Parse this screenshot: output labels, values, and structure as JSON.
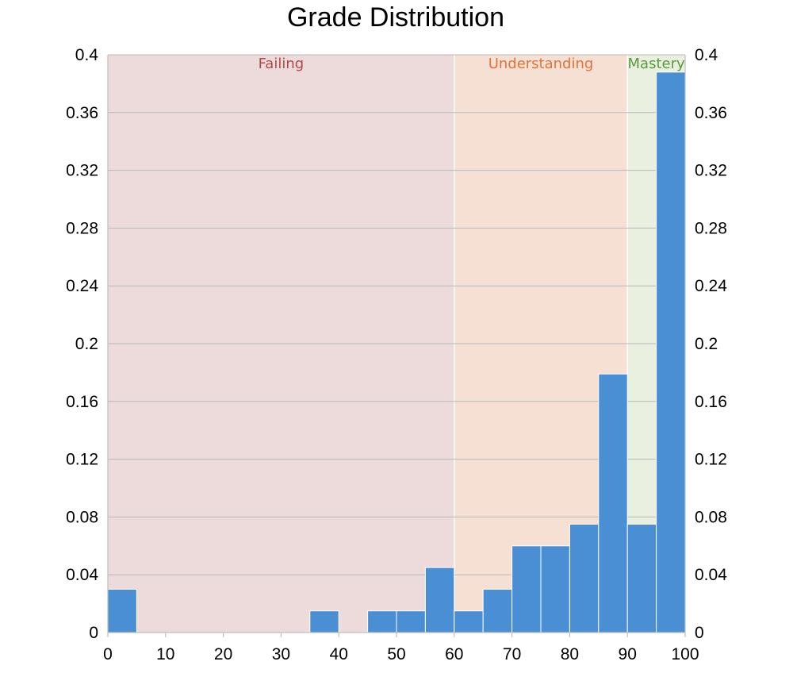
{
  "chart_data": {
    "type": "bar",
    "title": "Grade Distribution",
    "xlabel": "",
    "ylabel": "",
    "xlim": [
      0,
      100
    ],
    "ylim": [
      0,
      0.4
    ],
    "x_ticks": [
      "0",
      "10",
      "20",
      "30",
      "40",
      "50",
      "60",
      "70",
      "80",
      "90",
      "100"
    ],
    "y_ticks": [
      "0",
      "0.04",
      "0.08",
      "0.12",
      "0.16",
      "0.2",
      "0.24",
      "0.28",
      "0.32",
      "0.36",
      "0.4"
    ],
    "grid": true,
    "bin_width": 5,
    "bins": [
      {
        "start": 0,
        "end": 5,
        "value": 0.03
      },
      {
        "start": 5,
        "end": 10,
        "value": 0
      },
      {
        "start": 10,
        "end": 15,
        "value": 0
      },
      {
        "start": 15,
        "end": 20,
        "value": 0
      },
      {
        "start": 20,
        "end": 25,
        "value": 0
      },
      {
        "start": 25,
        "end": 30,
        "value": 0
      },
      {
        "start": 30,
        "end": 35,
        "value": 0
      },
      {
        "start": 35,
        "end": 40,
        "value": 0.015
      },
      {
        "start": 40,
        "end": 45,
        "value": 0
      },
      {
        "start": 45,
        "end": 50,
        "value": 0.015
      },
      {
        "start": 50,
        "end": 55,
        "value": 0.015
      },
      {
        "start": 55,
        "end": 60,
        "value": 0.045
      },
      {
        "start": 60,
        "end": 65,
        "value": 0.015
      },
      {
        "start": 65,
        "end": 70,
        "value": 0.03
      },
      {
        "start": 70,
        "end": 75,
        "value": 0.06
      },
      {
        "start": 75,
        "end": 80,
        "value": 0.06
      },
      {
        "start": 80,
        "end": 85,
        "value": 0.075
      },
      {
        "start": 85,
        "end": 90,
        "value": 0.179
      },
      {
        "start": 90,
        "end": 95,
        "value": 0.075
      },
      {
        "start": 95,
        "end": 100,
        "value": 0.388
      }
    ],
    "regions": [
      {
        "label": "Failing",
        "start": 0,
        "end": 60,
        "fill": "#eddbdb",
        "text_color": "#b04a4a"
      },
      {
        "label": "Understanding",
        "start": 60,
        "end": 90,
        "fill": "#f5e0d3",
        "text_color": "#e0733a"
      },
      {
        "label": "Mastery",
        "start": 90,
        "end": 100,
        "fill": "#e9f0e0",
        "text_color": "#5a9a3c"
      }
    ],
    "bar_color": "#4a8fd4"
  }
}
